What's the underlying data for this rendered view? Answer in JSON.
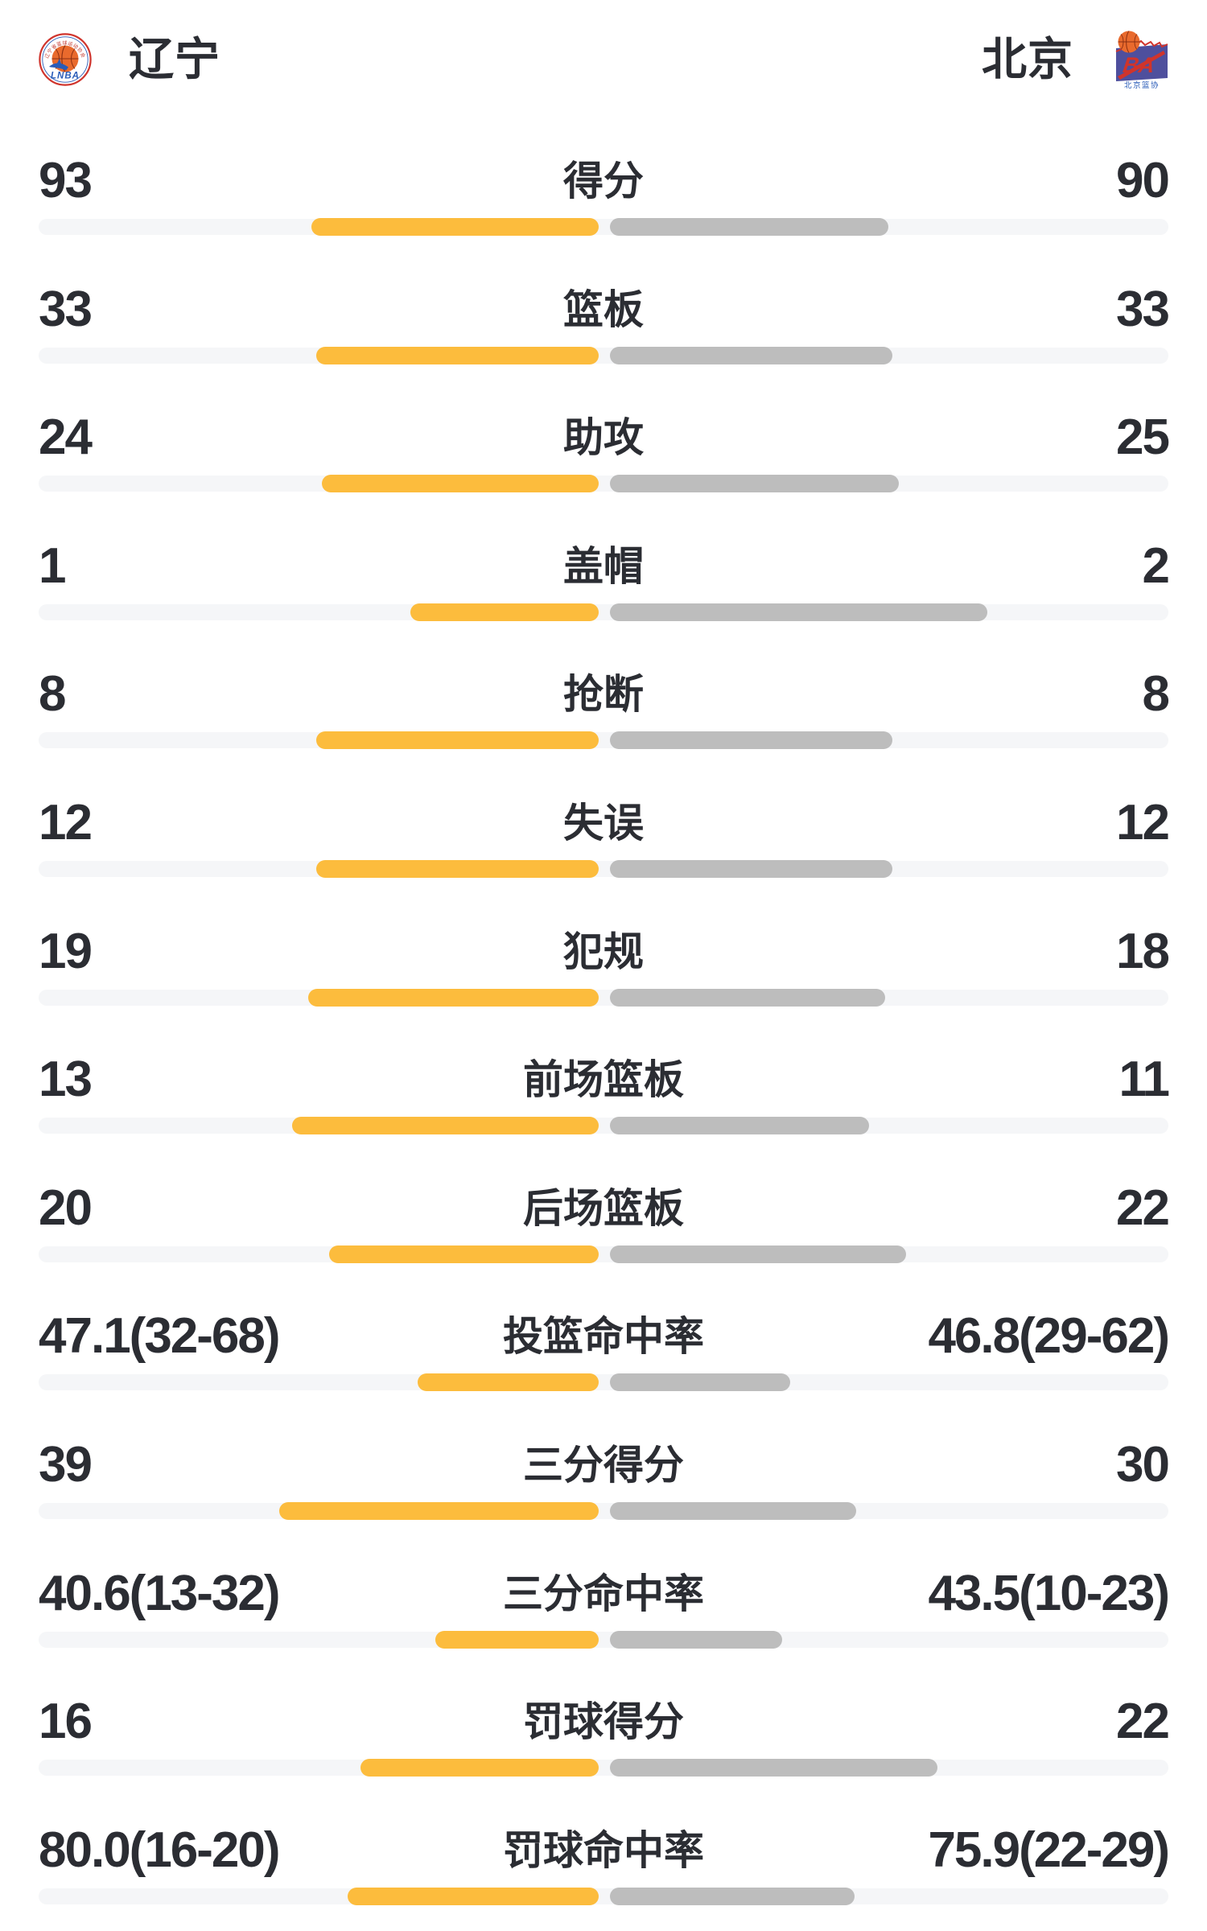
{
  "header": {
    "home_team": {
      "name": "辽宁",
      "logo": "liaoning-crest"
    },
    "away_team": {
      "name": "北京",
      "logo": "beijing-crest"
    },
    "away_logo_caption": "北京篮协",
    "home_logo_caption": "LNBA"
  },
  "colors": {
    "home_bar": "#fcbc3d",
    "away_bar": "#bdbdbd",
    "bar_track": "#f5f6f8",
    "text": "#2b2d33",
    "crest_red": "#d0342c",
    "crest_blue": "#2a5cb8",
    "ball_orange": "#e96a2d",
    "crest_purple": "#4e4f9d"
  },
  "stats": [
    {
      "label": "得分",
      "home_display": "93",
      "away_display": "90",
      "home_len": 357,
      "away_len": 346
    },
    {
      "label": "篮板",
      "home_display": "33",
      "away_display": "33",
      "home_len": 351,
      "away_len": 351
    },
    {
      "label": "助攻",
      "home_display": "24",
      "away_display": "25",
      "home_len": 344,
      "away_len": 359
    },
    {
      "label": "盖帽",
      "home_display": "1",
      "away_display": "2",
      "home_len": 234,
      "away_len": 469
    },
    {
      "label": "抢断",
      "home_display": "8",
      "away_display": "8",
      "home_len": 351,
      "away_len": 351
    },
    {
      "label": "失误",
      "home_display": "12",
      "away_display": "12",
      "home_len": 351,
      "away_len": 351
    },
    {
      "label": "犯规",
      "home_display": "19",
      "away_display": "18",
      "home_len": 361,
      "away_len": 342
    },
    {
      "label": "前场篮板",
      "home_display": "13",
      "away_display": "11",
      "home_len": 381,
      "away_len": 322
    },
    {
      "label": "后场篮板",
      "home_display": "20",
      "away_display": "22",
      "home_len": 335,
      "away_len": 368
    },
    {
      "label": "投篮命中率",
      "home_display": "47.1(32-68)",
      "away_display": "46.8(29-62)",
      "home_len": 225,
      "away_len": 224
    },
    {
      "label": "三分得分",
      "home_display": "39",
      "away_display": "30",
      "home_len": 397,
      "away_len": 306
    },
    {
      "label": "三分命中率",
      "home_display": "40.6(13-32)",
      "away_display": "43.5(10-23)",
      "home_len": 203,
      "away_len": 214
    },
    {
      "label": "罚球得分",
      "home_display": "16",
      "away_display": "22",
      "home_len": 296,
      "away_len": 407
    },
    {
      "label": "罚球命中率",
      "home_display": "80.0(16-20)",
      "away_display": "75.9(22-29)",
      "home_len": 312,
      "away_len": 304
    }
  ],
  "chart_data": {
    "type": "bar",
    "orientation": "horizontal-paired",
    "teams": [
      "辽宁",
      "北京"
    ],
    "categories": [
      "得分",
      "篮板",
      "助攻",
      "盖帽",
      "抢断",
      "失误",
      "犯规",
      "前场篮板",
      "后场篮板",
      "投篮命中率",
      "三分得分",
      "三分命中率",
      "罚球得分",
      "罚球命中率"
    ],
    "series": [
      {
        "name": "辽宁",
        "values": [
          93,
          33,
          24,
          1,
          8,
          12,
          19,
          13,
          20,
          47.1,
          39,
          40.6,
          16,
          80.0
        ]
      },
      {
        "name": "北京",
        "values": [
          90,
          33,
          25,
          2,
          8,
          12,
          18,
          11,
          22,
          46.8,
          30,
          43.5,
          22,
          75.9
        ]
      }
    ],
    "shooting_detail": {
      "投篮命中率": {
        "辽宁": "32-68",
        "北京": "29-62"
      },
      "三分命中率": {
        "辽宁": "13-32",
        "北京": "10-23"
      },
      "罚球命中率": {
        "辽宁": "16-20",
        "北京": "22-29"
      }
    },
    "legend_position": "header",
    "grid": false
  },
  "layout": {
    "row_pitch": 159.6,
    "first_row_top": 158
  }
}
